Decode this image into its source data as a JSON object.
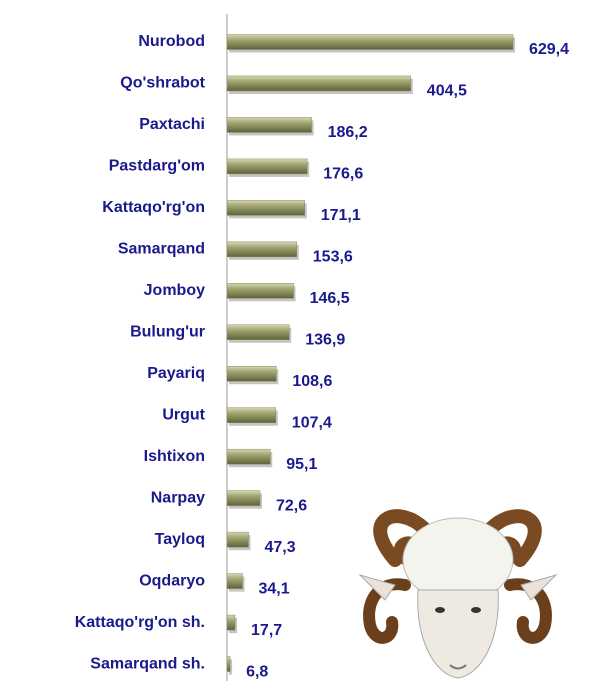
{
  "chart_data": {
    "type": "bar",
    "orientation": "horizontal",
    "color": "#8b8e5c",
    "categories": [
      "Nurobod",
      "Qo'shrabot",
      "Paxtachi",
      "Pastdarg'om",
      "Kattaqo'rg'on",
      "Samarqand",
      "Jomboy",
      "Bulung'ur",
      "Payariq",
      "Urgut",
      "Ishtixon",
      "Narpay",
      "Tayloq",
      "Oqdaryo",
      "Kattaqo'rg'on sh.",
      "Samarqand sh."
    ],
    "values": [
      629.4,
      404.5,
      186.2,
      176.6,
      171.1,
      153.6,
      146.5,
      136.9,
      108.6,
      107.4,
      95.1,
      72.6,
      47.3,
      34.1,
      17.7,
      6.8
    ],
    "value_labels": [
      "629,4",
      "404,5",
      "186,2",
      "176,6",
      "171,1",
      "153,6",
      "146,5",
      "136,9",
      "108,6",
      "107,4",
      "95,1",
      "72,6",
      "47,3",
      "34,1",
      "17,7",
      "6,8"
    ]
  }
}
